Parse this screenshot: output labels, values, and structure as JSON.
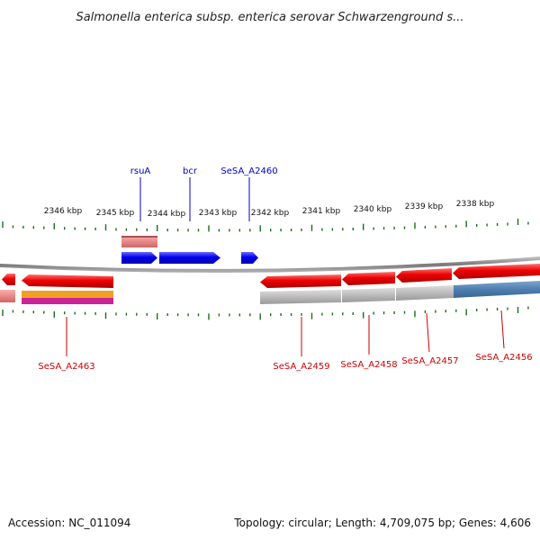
{
  "title": "Salmonella enterica subsp. enterica serovar Schwarzenground s...",
  "footer": {
    "accession": "Accession: NC_011094",
    "summary": "Topology: circular; Length: 4,709,075 bp; Genes: 4,606"
  },
  "scale_labels": [
    "2346 kbp",
    "2345 kbp",
    "2344 kbp",
    "2343 kbp",
    "2342 kbp",
    "2341 kbp",
    "2340 kbp",
    "2339 kbp",
    "2338 kbp"
  ],
  "top_gene_labels": [
    "rsuA",
    "bcr",
    "SeSA_A2460"
  ],
  "bottom_gene_labels": [
    "SeSA_A2463",
    "SeSA_A2459",
    "SeSA_A2458",
    "SeSA_A2457",
    "SeSA_A2456"
  ],
  "colors": {
    "forward_cds": "#0000ee",
    "reverse_cds": "#ee1111",
    "label_forward": "#0000cc",
    "label_reverse": "#cc0000",
    "backbone": "#888888",
    "tick": "#1a6e1a",
    "track_grey": "#bbbbbb",
    "track_steelblue": "#4d7fb0",
    "track_pink": "#e88888",
    "track_orange": "#f0a020",
    "track_magenta": "#cc2299"
  }
}
